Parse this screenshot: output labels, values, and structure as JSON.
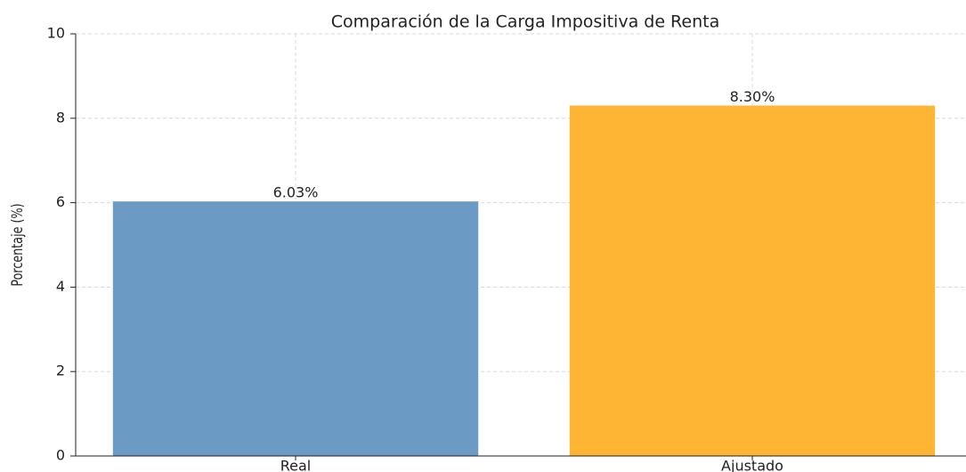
{
  "chart_data": {
    "type": "bar",
    "title": "Comparación de la Carga Impositiva de Renta",
    "y_label": "Porcentaje (%)",
    "categories": [
      "Real",
      "Ajustado"
    ],
    "values": [
      6.03,
      8.3
    ],
    "value_labels": [
      "6.03%",
      "8.30%"
    ],
    "colors": [
      "#6b9ac4",
      "#ffb534"
    ],
    "ylim": [
      0,
      10
    ],
    "yticks": [
      0,
      2,
      4,
      6,
      8,
      10
    ],
    "grid": true
  }
}
